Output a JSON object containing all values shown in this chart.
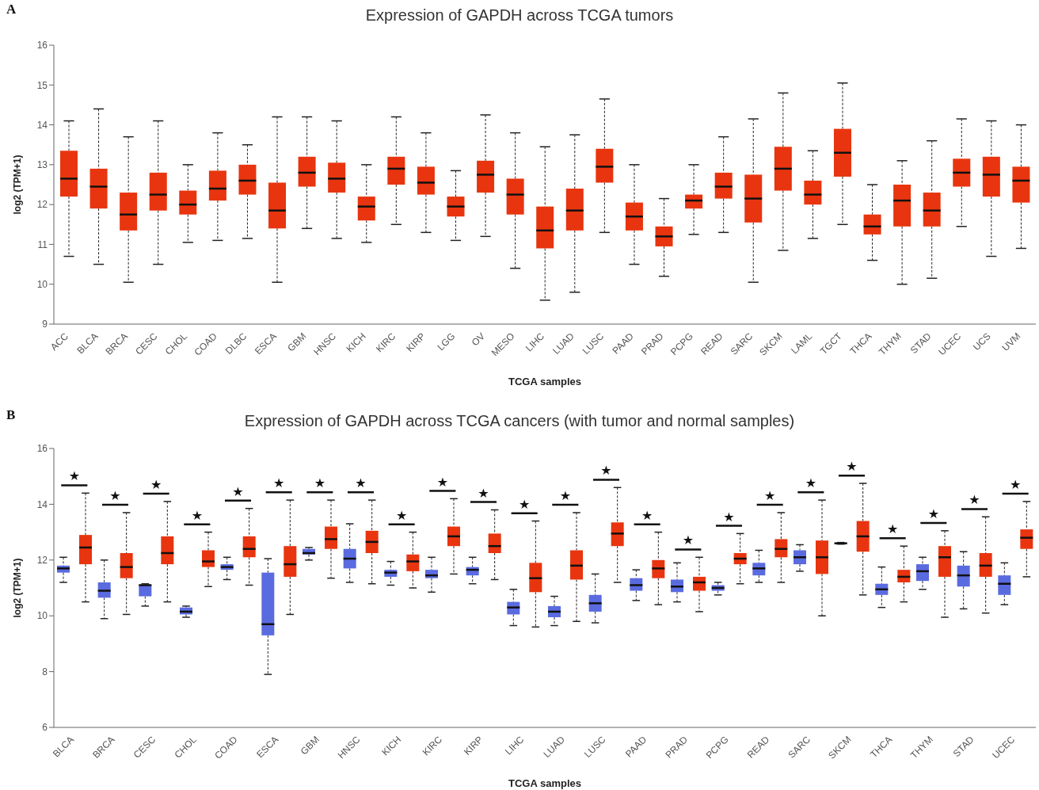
{
  "chart_data": [
    {
      "type": "box",
      "title": "Expression of GAPDH across TCGA tumors",
      "xlabel": "TCGA samples",
      "ylabel": "log2 (TPM+1)",
      "annotations": [
        "A"
      ],
      "color": "#e8350f",
      "ylim": [
        9,
        16
      ],
      "yticks": [
        9,
        10,
        11,
        12,
        13,
        14,
        15,
        16
      ],
      "categories": [
        "ACC",
        "BLCA",
        "BRCA",
        "CESC",
        "CHOL",
        "COAD",
        "DLBC",
        "ESCA",
        "GBM",
        "HNSC",
        "KICH",
        "KIRC",
        "KIRP",
        "LGG",
        "OV",
        "MESO",
        "LIHC",
        "LUAD",
        "LUSC",
        "PAAD",
        "PRAD",
        "PCPG",
        "READ",
        "SARC",
        "SKCM",
        "LAML",
        "TGCT",
        "THCA",
        "THYM",
        "STAD",
        "UCEC",
        "UCS",
        "UVM"
      ],
      "boxes": [
        {
          "low": 10.7,
          "q1": 12.2,
          "median": 12.65,
          "q3": 13.35,
          "high": 14.1
        },
        {
          "low": 10.5,
          "q1": 11.9,
          "median": 12.45,
          "q3": 12.9,
          "high": 14.4
        },
        {
          "low": 10.05,
          "q1": 11.35,
          "median": 11.75,
          "q3": 12.3,
          "high": 13.7
        },
        {
          "low": 10.5,
          "q1": 11.85,
          "median": 12.25,
          "q3": 12.8,
          "high": 14.1
        },
        {
          "low": 11.05,
          "q1": 11.75,
          "median": 12.0,
          "q3": 12.35,
          "high": 13.0
        },
        {
          "low": 11.1,
          "q1": 12.1,
          "median": 12.4,
          "q3": 12.85,
          "high": 13.8
        },
        {
          "low": 11.15,
          "q1": 12.25,
          "median": 12.6,
          "q3": 13.0,
          "high": 13.5
        },
        {
          "low": 10.05,
          "q1": 11.4,
          "median": 11.85,
          "q3": 12.55,
          "high": 14.2
        },
        {
          "low": 11.4,
          "q1": 12.45,
          "median": 12.8,
          "q3": 13.2,
          "high": 14.2
        },
        {
          "low": 11.15,
          "q1": 12.3,
          "median": 12.65,
          "q3": 13.05,
          "high": 14.1
        },
        {
          "low": 11.05,
          "q1": 11.6,
          "median": 11.95,
          "q3": 12.2,
          "high": 13.0
        },
        {
          "low": 11.5,
          "q1": 12.5,
          "median": 12.9,
          "q3": 13.2,
          "high": 14.2
        },
        {
          "low": 11.3,
          "q1": 12.25,
          "median": 12.55,
          "q3": 12.95,
          "high": 13.8
        },
        {
          "low": 11.1,
          "q1": 11.7,
          "median": 11.95,
          "q3": 12.2,
          "high": 12.85
        },
        {
          "low": 11.2,
          "q1": 12.3,
          "median": 12.75,
          "q3": 13.1,
          "high": 14.25
        },
        {
          "low": 10.4,
          "q1": 11.75,
          "median": 12.25,
          "q3": 12.65,
          "high": 13.8
        },
        {
          "low": 9.6,
          "q1": 10.9,
          "median": 11.35,
          "q3": 11.95,
          "high": 13.45
        },
        {
          "low": 9.8,
          "q1": 11.35,
          "median": 11.85,
          "q3": 12.4,
          "high": 13.75
        },
        {
          "low": 11.3,
          "q1": 12.55,
          "median": 12.95,
          "q3": 13.4,
          "high": 14.65
        },
        {
          "low": 10.5,
          "q1": 11.35,
          "median": 11.7,
          "q3": 12.05,
          "high": 13.0
        },
        {
          "low": 10.2,
          "q1": 10.95,
          "median": 11.2,
          "q3": 11.45,
          "high": 12.15
        },
        {
          "low": 11.25,
          "q1": 11.9,
          "median": 12.1,
          "q3": 12.25,
          "high": 13.0
        },
        {
          "low": 11.3,
          "q1": 12.15,
          "median": 12.45,
          "q3": 12.8,
          "high": 13.7
        },
        {
          "low": 10.05,
          "q1": 11.55,
          "median": 12.15,
          "q3": 12.75,
          "high": 14.15
        },
        {
          "low": 10.85,
          "q1": 12.35,
          "median": 12.9,
          "q3": 13.45,
          "high": 14.8
        },
        {
          "low": 11.15,
          "q1": 12.0,
          "median": 12.25,
          "q3": 12.6,
          "high": 13.35
        },
        {
          "low": 11.5,
          "q1": 12.7,
          "median": 13.3,
          "q3": 13.9,
          "high": 15.05
        },
        {
          "low": 10.6,
          "q1": 11.25,
          "median": 11.45,
          "q3": 11.75,
          "high": 12.5
        },
        {
          "low": 10.0,
          "q1": 11.45,
          "median": 12.1,
          "q3": 12.5,
          "high": 13.1
        },
        {
          "low": 10.15,
          "q1": 11.45,
          "median": 11.85,
          "q3": 12.3,
          "high": 13.6
        },
        {
          "low": 11.45,
          "q1": 12.45,
          "median": 12.8,
          "q3": 13.15,
          "high": 14.15
        },
        {
          "low": 10.7,
          "q1": 12.2,
          "median": 12.75,
          "q3": 13.2,
          "high": 14.1
        },
        {
          "low": 10.9,
          "q1": 12.05,
          "median": 12.6,
          "q3": 12.95,
          "high": 14.0
        }
      ]
    },
    {
      "type": "box",
      "title": "Expression of GAPDH across TCGA cancers (with tumor and normal samples)",
      "xlabel": "TCGA samples",
      "ylabel": "log2 (TPM+1)",
      "ylim": [
        6,
        16
      ],
      "yticks": [
        6,
        8,
        10,
        12,
        14,
        16
      ],
      "categories": [
        "BLCA",
        "BRCA",
        "CESC",
        "CHOL",
        "COAD",
        "ESCA",
        "GBM",
        "HNSC",
        "KICH",
        "KIRC",
        "KIRP",
        "LIHC",
        "LUAD",
        "LUSC",
        "PAAD",
        "PRAD",
        "PCPG",
        "READ",
        "SARC",
        "SKCM",
        "THCA",
        "THYM",
        "STAD",
        "UCEC"
      ],
      "series": [
        {
          "color": "#5a6be0",
          "boxes": [
            {
              "low": 11.2,
              "q1": 11.55,
              "median": 11.7,
              "q3": 11.8,
              "high": 12.1
            },
            {
              "low": 9.9,
              "q1": 10.65,
              "median": 10.9,
              "q3": 11.2,
              "high": 12.0
            },
            {
              "low": 10.35,
              "q1": 10.7,
              "median": 11.1,
              "q3": 11.1,
              "high": 11.15
            },
            {
              "low": 9.95,
              "q1": 10.05,
              "median": 10.15,
              "q3": 10.3,
              "high": 10.35
            },
            {
              "low": 11.3,
              "q1": 11.65,
              "median": 11.75,
              "q3": 11.85,
              "high": 12.1
            },
            {
              "low": 7.9,
              "q1": 9.3,
              "median": 9.7,
              "q3": 11.55,
              "high": 12.05
            },
            {
              "low": 12.0,
              "q1": 12.2,
              "median": 12.25,
              "q3": 12.4,
              "high": 12.45
            },
            {
              "low": 11.2,
              "q1": 11.7,
              "median": 12.05,
              "q3": 12.4,
              "high": 13.3
            },
            {
              "low": 11.1,
              "q1": 11.4,
              "median": 11.55,
              "q3": 11.65,
              "high": 11.95
            },
            {
              "low": 10.85,
              "q1": 11.35,
              "median": 11.45,
              "q3": 11.65,
              "high": 12.1
            },
            {
              "low": 11.15,
              "q1": 11.45,
              "median": 11.65,
              "q3": 11.75,
              "high": 12.1
            },
            {
              "low": 9.65,
              "q1": 10.05,
              "median": 10.3,
              "q3": 10.5,
              "high": 10.95
            },
            {
              "low": 9.65,
              "q1": 9.95,
              "median": 10.15,
              "q3": 10.35,
              "high": 10.7
            },
            {
              "low": 9.75,
              "q1": 10.15,
              "median": 10.45,
              "q3": 10.75,
              "high": 11.5
            },
            {
              "low": 10.55,
              "q1": 10.9,
              "median": 11.1,
              "q3": 11.35,
              "high": 11.65
            },
            {
              "low": 10.5,
              "q1": 10.85,
              "median": 11.05,
              "q3": 11.3,
              "high": 11.9
            },
            {
              "low": 10.75,
              "q1": 10.9,
              "median": 11.0,
              "q3": 11.1,
              "high": 11.2
            },
            {
              "low": 11.2,
              "q1": 11.45,
              "median": 11.7,
              "q3": 11.9,
              "high": 12.35
            },
            {
              "low": 11.6,
              "q1": 11.85,
              "median": 12.1,
              "q3": 12.35,
              "high": 12.55
            },
            {
              "low": 12.57,
              "q1": 12.58,
              "median": 12.6,
              "q3": 12.62,
              "high": 12.63
            },
            {
              "low": 10.3,
              "q1": 10.75,
              "median": 10.95,
              "q3": 11.15,
              "high": 11.75
            },
            {
              "low": 10.95,
              "q1": 11.25,
              "median": 11.6,
              "q3": 11.85,
              "high": 12.1
            },
            {
              "low": 10.25,
              "q1": 11.05,
              "median": 11.45,
              "q3": 11.8,
              "high": 12.3
            },
            {
              "low": 10.4,
              "q1": 10.75,
              "median": 11.15,
              "q3": 11.45,
              "high": 11.9
            }
          ]
        },
        {
          "color": "#e8350f",
          "boxes": [
            {
              "low": 10.5,
              "q1": 11.85,
              "median": 12.45,
              "q3": 12.9,
              "high": 14.4
            },
            {
              "low": 10.05,
              "q1": 11.35,
              "median": 11.75,
              "q3": 12.25,
              "high": 13.7
            },
            {
              "low": 10.5,
              "q1": 11.85,
              "median": 12.25,
              "q3": 12.85,
              "high": 14.1
            },
            {
              "low": 11.05,
              "q1": 11.75,
              "median": 11.95,
              "q3": 12.35,
              "high": 13.0
            },
            {
              "low": 11.1,
              "q1": 12.1,
              "median": 12.4,
              "q3": 12.85,
              "high": 13.85
            },
            {
              "low": 10.05,
              "q1": 11.4,
              "median": 11.85,
              "q3": 12.5,
              "high": 14.15
            },
            {
              "low": 11.35,
              "q1": 12.4,
              "median": 12.75,
              "q3": 13.2,
              "high": 14.15
            },
            {
              "low": 11.15,
              "q1": 12.25,
              "median": 12.65,
              "q3": 13.05,
              "high": 14.15
            },
            {
              "low": 11.0,
              "q1": 11.6,
              "median": 11.95,
              "q3": 12.2,
              "high": 13.0
            },
            {
              "low": 11.5,
              "q1": 12.5,
              "median": 12.85,
              "q3": 13.2,
              "high": 14.2
            },
            {
              "low": 11.3,
              "q1": 12.25,
              "median": 12.5,
              "q3": 12.95,
              "high": 13.8
            },
            {
              "low": 9.6,
              "q1": 10.85,
              "median": 11.35,
              "q3": 11.9,
              "high": 13.4
            },
            {
              "low": 9.8,
              "q1": 11.3,
              "median": 11.8,
              "q3": 12.35,
              "high": 13.7
            },
            {
              "low": 11.2,
              "q1": 12.5,
              "median": 12.95,
              "q3": 13.35,
              "high": 14.6
            },
            {
              "low": 10.4,
              "q1": 11.35,
              "median": 11.7,
              "q3": 12.0,
              "high": 13.0
            },
            {
              "low": 10.15,
              "q1": 10.9,
              "median": 11.2,
              "q3": 11.4,
              "high": 12.1
            },
            {
              "low": 11.15,
              "q1": 11.85,
              "median": 12.05,
              "q3": 12.25,
              "high": 12.95
            },
            {
              "low": 11.2,
              "q1": 12.1,
              "median": 12.4,
              "q3": 12.75,
              "high": 13.7
            },
            {
              "low": 10.0,
              "q1": 11.5,
              "median": 12.1,
              "q3": 12.7,
              "high": 14.15
            },
            {
              "low": 10.75,
              "q1": 12.3,
              "median": 12.85,
              "q3": 13.4,
              "high": 14.75
            },
            {
              "low": 10.5,
              "q1": 11.2,
              "median": 11.4,
              "q3": 11.65,
              "high": 12.5
            },
            {
              "low": 9.95,
              "q1": 11.4,
              "median": 12.1,
              "q3": 12.5,
              "high": 13.05
            },
            {
              "low": 10.1,
              "q1": 11.4,
              "median": 11.8,
              "q3": 12.25,
              "high": 13.55
            },
            {
              "low": 11.4,
              "q1": 12.4,
              "median": 12.8,
              "q3": 13.1,
              "high": 14.1
            }
          ]
        }
      ],
      "annotations": [
        "B",
        "★",
        "★",
        "★",
        "★",
        "★",
        "★",
        "★",
        "★",
        "★",
        "★",
        "★",
        "★",
        "★",
        "★",
        "★",
        "★",
        "★",
        "★",
        "★",
        "★",
        "★",
        "★",
        "★",
        "★"
      ]
    }
  ]
}
